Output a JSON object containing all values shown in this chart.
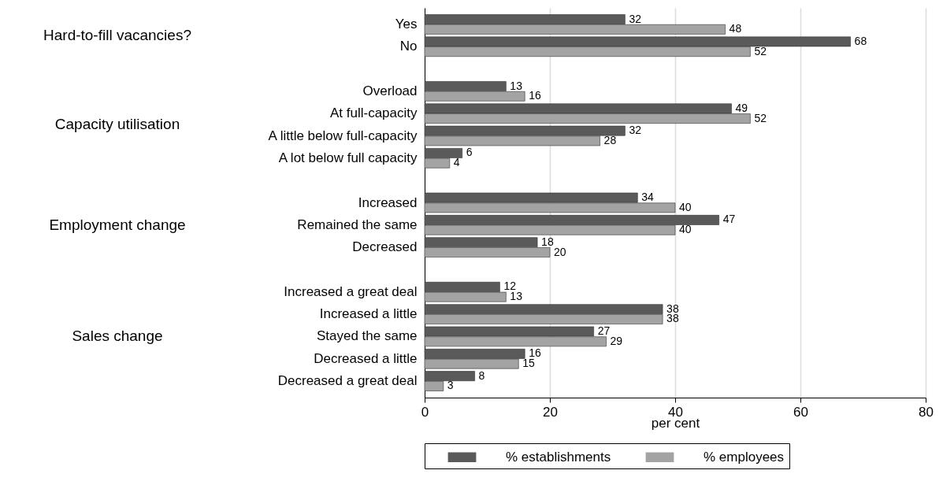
{
  "chart_data": {
    "type": "bar",
    "orientation": "horizontal",
    "categories": [
      "Yes",
      "No",
      null,
      "Overload",
      "At full-capacity",
      "A little below full-capacity",
      "A lot below full capacity",
      null,
      "Increased",
      "Remained the same",
      "Decreased",
      null,
      "Increased a great deal",
      "Increased a little",
      "Stayed the same",
      "Decreased a little",
      "Decreased a great deal"
    ],
    "series": [
      {
        "name": "% establishments",
        "color": "#5a5a5a",
        "values": [
          32,
          68,
          null,
          13,
          49,
          32,
          6,
          null,
          34,
          47,
          18,
          null,
          12,
          38,
          27,
          16,
          8
        ]
      },
      {
        "name": "% employees",
        "color": "#a3a3a3",
        "values": [
          48,
          52,
          null,
          16,
          52,
          28,
          4,
          null,
          40,
          40,
          20,
          null,
          13,
          38,
          29,
          15,
          3
        ]
      }
    ],
    "xlabel": "per cent",
    "xlim": [
      0,
      80
    ],
    "xticks": [
      0,
      20,
      40,
      60,
      80
    ],
    "grid": "x",
    "legend": "bottom",
    "data_labels": true,
    "annotations": [
      "Hard-to-fill vacancies?",
      "Capacity utilisation",
      "Employment change",
      "Sales change"
    ]
  }
}
